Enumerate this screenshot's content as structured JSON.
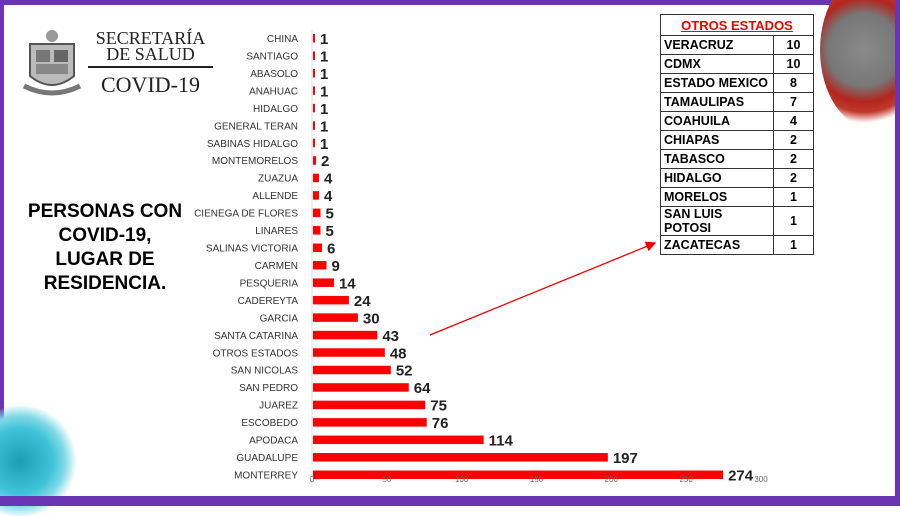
{
  "header": {
    "org_line1": "SECRETARÍA",
    "org_line2": "DE SALUD",
    "subtitle": "COVID-19"
  },
  "side_title": [
    "PERSONAS CON",
    "COVID-19,",
    "LUGAR DE",
    "RESIDENCIA."
  ],
  "chart_data": {
    "type": "bar",
    "orientation": "horizontal",
    "title": "PERSONAS CON COVID-19, LUGAR DE RESIDENCIA.",
    "categories": [
      "CHINA",
      "SANTIAGO",
      "ABASOLO",
      "ANAHUAC",
      "HIDALGO",
      "GENERAL TERAN",
      "SABINAS HIDALGO",
      "MONTEMORELOS",
      "ZUAZUA",
      "ALLENDE",
      "CIENEGA DE FLORES",
      "LINARES",
      "SALINAS VICTORIA",
      "CARMEN",
      "PESQUERIA",
      "CADEREYTA",
      "GARCIA",
      "SANTA CATARINA",
      "OTROS ESTADOS",
      "SAN NICOLAS",
      "SAN PEDRO",
      "JUAREZ",
      "ESCOBEDO",
      "APODACA",
      "GUADALUPE",
      "MONTERREY"
    ],
    "values": [
      1,
      1,
      1,
      1,
      1,
      1,
      1,
      2,
      4,
      4,
      5,
      5,
      6,
      9,
      14,
      24,
      30,
      43,
      48,
      52,
      64,
      75,
      76,
      114,
      197,
      274
    ],
    "xlim": [
      0,
      300
    ],
    "xticks": [
      0,
      50,
      100,
      150,
      200,
      250,
      300
    ],
    "bar_color": "#ff0000",
    "grid": false,
    "legend": "none"
  },
  "otros_estados": {
    "title": "OTROS ESTADOS",
    "rows": [
      {
        "name": "VERACRUZ",
        "value": "10"
      },
      {
        "name": "CDMX",
        "value": "10"
      },
      {
        "name": "ESTADO MEXICO",
        "value": "8"
      },
      {
        "name": "TAMAULIPAS",
        "value": "7"
      },
      {
        "name": "COAHUILA",
        "value": "4"
      },
      {
        "name": "CHIAPAS",
        "value": "2"
      },
      {
        "name": "TABASCO",
        "value": "2"
      },
      {
        "name": "HIDALGO",
        "value": "2"
      },
      {
        "name": "MORELOS",
        "value": "1"
      },
      {
        "name": "SAN LUIS POTOSI",
        "value": "1"
      },
      {
        "name": "ZACATECAS",
        "value": "1"
      }
    ]
  }
}
